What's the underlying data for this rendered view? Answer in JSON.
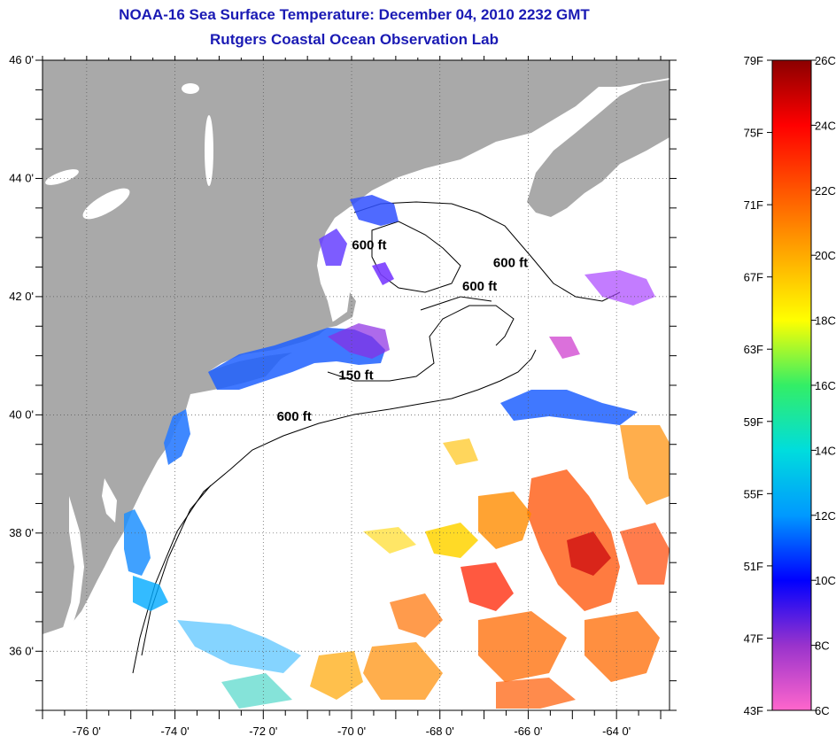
{
  "header": {
    "title": "NOAA-16 Sea Surface Temperature:  December 04, 2010 2232 GMT",
    "subtitle": "Rutgers Coastal Ocean Observation Lab"
  },
  "map": {
    "lon_range": [
      -77,
      -62.8
    ],
    "lat_range": [
      35,
      46
    ],
    "lon_ticks": [
      {
        "value": -76,
        "label": "-76 0'"
      },
      {
        "value": -74,
        "label": "-74 0'"
      },
      {
        "value": -72,
        "label": "-72 0'"
      },
      {
        "value": -70,
        "label": "-70 0'"
      },
      {
        "value": -68,
        "label": "-68 0'"
      },
      {
        "value": -66,
        "label": "-66 0'"
      },
      {
        "value": -64,
        "label": "-64 0'"
      }
    ],
    "lat_ticks": [
      {
        "value": 46,
        "label": "46 0'"
      },
      {
        "value": 44,
        "label": "44 0'"
      },
      {
        "value": 42,
        "label": "42 0'"
      },
      {
        "value": 40,
        "label": "40 0'"
      },
      {
        "value": 38,
        "label": "38 0'"
      },
      {
        "value": 36,
        "label": "36 0'"
      }
    ],
    "grid": "dotted",
    "contour_labels": [
      {
        "text": "600 ft",
        "lon": -69.6,
        "lat": 42.8
      },
      {
        "text": "600 ft",
        "lon": -66.4,
        "lat": 42.5
      },
      {
        "text": "600 ft",
        "lon": -67.1,
        "lat": 42.1
      },
      {
        "text": "150 ft",
        "lon": -69.9,
        "lat": 40.6
      },
      {
        "text": "600 ft",
        "lon": -71.3,
        "lat": 39.9
      }
    ],
    "colors": {
      "land": "#a9a9a9",
      "ocean": "#ffffff",
      "contour": "#000000"
    }
  },
  "colorbar": {
    "fahrenheit_labels": [
      "79F",
      "75F",
      "71F",
      "67F",
      "63F",
      "59F",
      "55F",
      "51F",
      "47F",
      "43F"
    ],
    "celsius_labels": [
      "26C",
      "24C",
      "22C",
      "20C",
      "18C",
      "16C",
      "14C",
      "12C",
      "10C",
      "8C",
      "6C"
    ],
    "stops": [
      "#ff66cc",
      "#9933cc",
      "#0000ff",
      "#0099ff",
      "#00dddd",
      "#33ee66",
      "#ffff00",
      "#ffaa00",
      "#ff5500",
      "#ff0000",
      "#8b0000"
    ]
  }
}
